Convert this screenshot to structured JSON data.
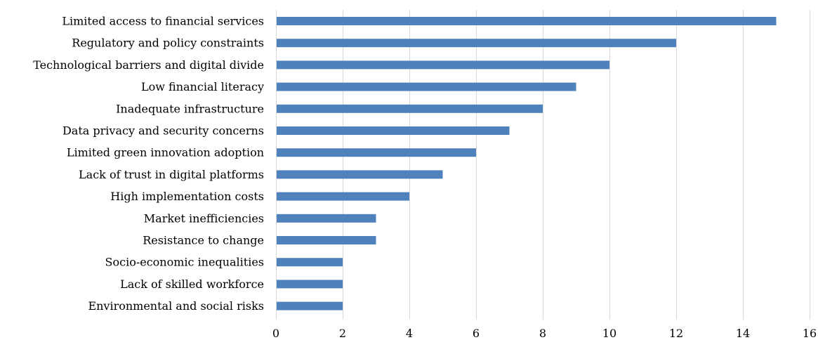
{
  "chart_data": {
    "type": "bar",
    "orientation": "horizontal",
    "title": "",
    "xlabel": "",
    "ylabel": "",
    "xlim": [
      0,
      16
    ],
    "x_ticks": [
      0,
      2,
      4,
      6,
      8,
      10,
      12,
      14,
      16
    ],
    "grid": true,
    "bar_color": "#4f81bd",
    "grid_color": "#d9d9d9",
    "categories": [
      "Limited access to financial services",
      "Regulatory and policy constraints",
      "Technological barriers and digital divide",
      "Low financial literacy",
      "Inadequate infrastructure",
      "Data privacy and security concerns",
      "Limited green innovation adoption",
      "Lack of trust in digital platforms",
      "High implementation costs",
      "Market inefficiencies",
      "Resistance to change",
      "Socio-economic inequalities",
      "Lack of skilled workforce",
      "Environmental and social risks"
    ],
    "values": [
      15,
      12,
      10,
      9,
      8,
      7,
      6,
      5,
      4,
      3,
      3,
      2,
      2,
      2
    ]
  }
}
